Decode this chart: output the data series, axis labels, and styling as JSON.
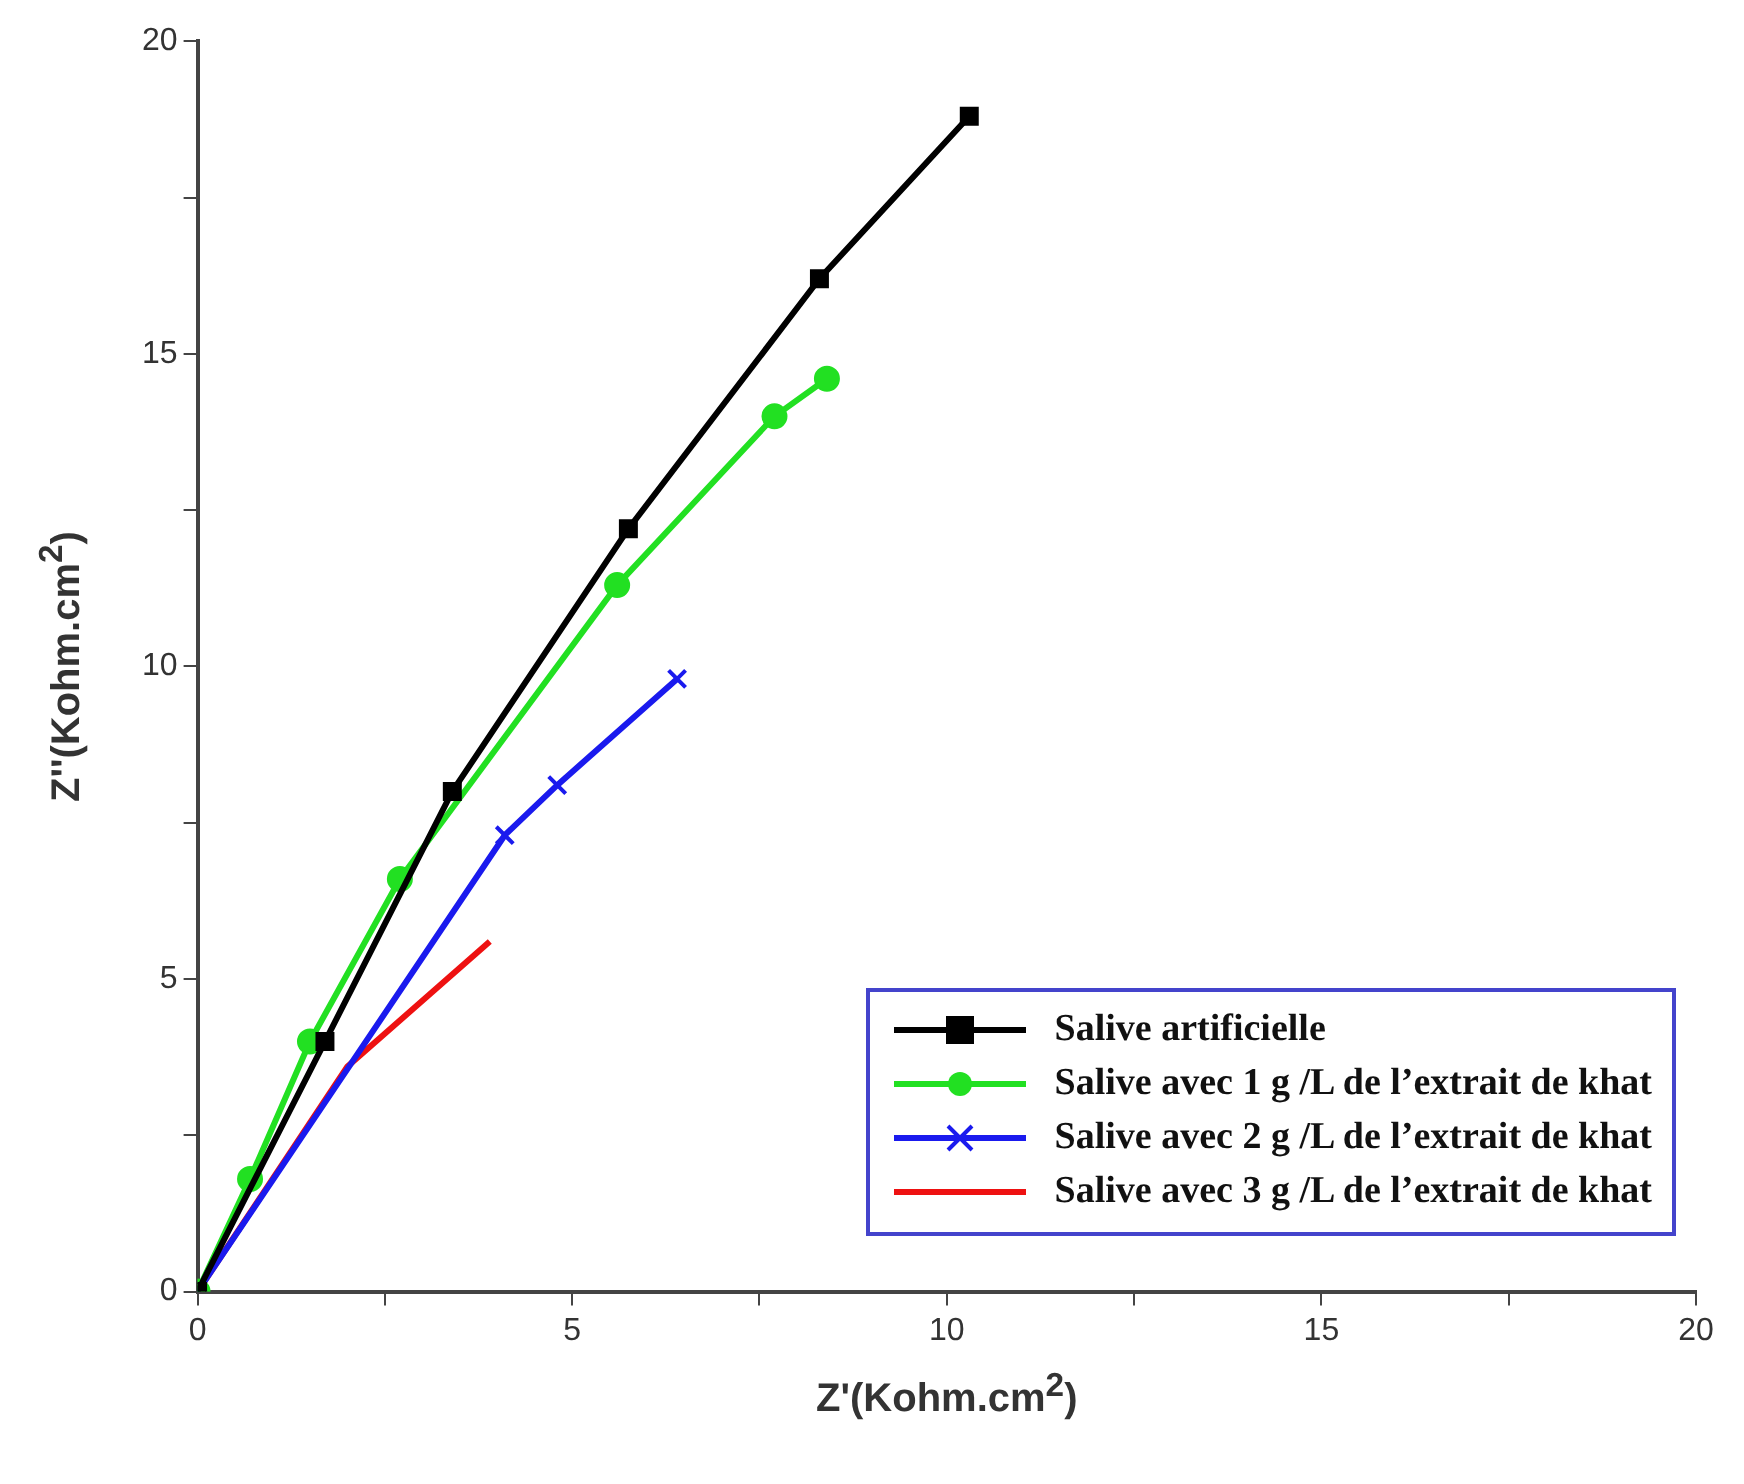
{
  "chart_data": {
    "type": "line",
    "xlabel": "Z'(Kohm.cm$^{2}$)",
    "ylabel": "Z''(Kohm.cm$^{2}$)",
    "xlim": [
      0,
      20
    ],
    "ylim": [
      0,
      20
    ],
    "xticks": [
      0,
      {
        "value": 2.5,
        "label": null
      },
      5,
      {
        "value": 7.5,
        "label": null
      },
      10,
      {
        "value": 12.5,
        "label": null
      },
      15,
      {
        "value": 17.5,
        "label": null
      },
      20
    ],
    "yticks": [
      0,
      {
        "value": 2.5,
        "label": null
      },
      5,
      {
        "value": 7.5,
        "label": null
      },
      10,
      {
        "value": 12.5,
        "label": null
      },
      15,
      {
        "value": 17.5,
        "label": null
      },
      20
    ],
    "grid": false,
    "legend": "bottom right",
    "series": [
      {
        "name": "Salive artificielle",
        "color": "#000000",
        "marker": "square",
        "x": [
          0,
          1.7,
          3.4,
          5.75,
          8.3,
          10.3
        ],
        "values": [
          0,
          4.0,
          8.0,
          12.2,
          16.2,
          18.8
        ]
      },
      {
        "name": "Salive avec 1 g /L de l’extrait de khat",
        "color": "#22e022",
        "marker": "circle",
        "x": [
          0,
          0.7,
          1.5,
          2.7,
          5.6,
          7.7,
          8.4
        ],
        "values": [
          0,
          1.8,
          4.0,
          6.6,
          11.3,
          14.0,
          14.6
        ]
      },
      {
        "name": "Salive avec 2 g /L de l’extrait de khat",
        "color": "#1a1aee",
        "marker": "cross",
        "x": [
          0,
          4.1,
          4.8,
          6.4
        ],
        "values": [
          0,
          7.3,
          8.1,
          9.8
        ]
      },
      {
        "name": "Salive avec 3 g /L de l’extrait de khat",
        "color": "#ee1111",
        "marker": "none",
        "x": [
          0,
          2.0,
          3.9
        ],
        "values": [
          0,
          3.6,
          5.6
        ]
      }
    ]
  }
}
